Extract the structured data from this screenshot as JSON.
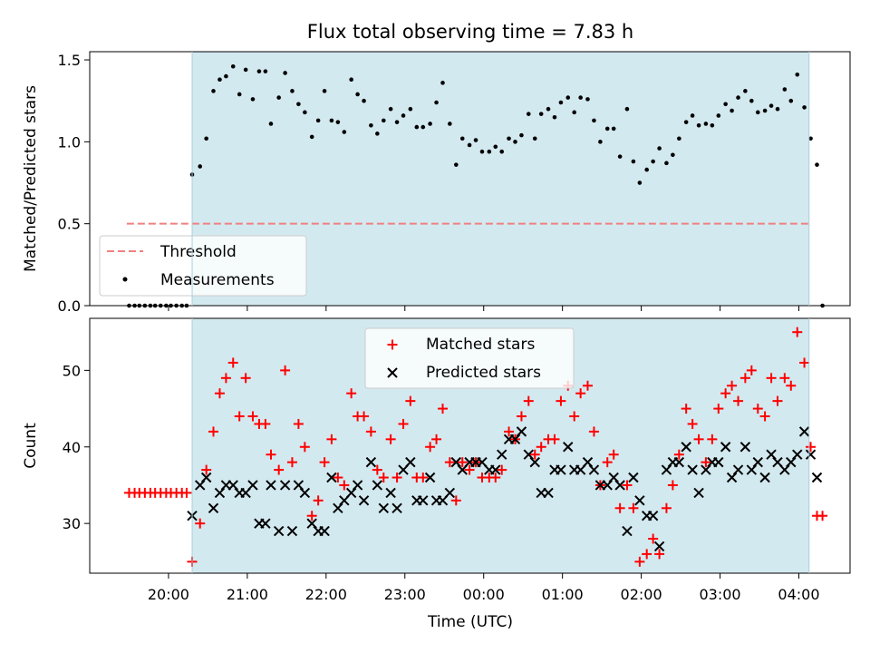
{
  "title": "Flux total observing time = 7.83 h",
  "xlabel": "Time (UTC)",
  "x_ticks": [
    "20:00",
    "21:00",
    "22:00",
    "23:00",
    "00:00",
    "01:00",
    "02:00",
    "03:00",
    "04:00"
  ],
  "colors": {
    "shade": "#d3e9f0",
    "threshold": "#f08080",
    "measurement": "#000000",
    "matched": "#ff0000",
    "predicted": "#000000"
  },
  "chart_data": [
    {
      "type": "scatter",
      "ylabel": "Matched/Predicted stars",
      "xlim_hours": [
        19.0,
        28.65
      ],
      "ylim": [
        0,
        1.55
      ],
      "y_ticks": [
        "0.0",
        "0.5",
        "1.0",
        "1.5"
      ],
      "legend": {
        "position": "lower-left",
        "threshold_label": "Threshold",
        "measurement_label": "Measurements"
      },
      "observing_window_hours": [
        20.3,
        28.13
      ],
      "threshold": {
        "value": 0.5,
        "x_range_hours": [
          19.47,
          28.15
        ]
      },
      "measurements": [
        [
          19.5,
          0.0
        ],
        [
          19.57,
          0.0
        ],
        [
          19.63,
          0.0
        ],
        [
          19.7,
          0.0
        ],
        [
          19.77,
          0.0
        ],
        [
          19.83,
          0.0
        ],
        [
          19.9,
          0.0
        ],
        [
          19.97,
          0.0
        ],
        [
          20.03,
          0.0
        ],
        [
          20.1,
          0.0
        ],
        [
          20.17,
          0.0
        ],
        [
          20.23,
          0.0
        ],
        [
          20.3,
          0.8
        ],
        [
          20.4,
          0.85
        ],
        [
          20.48,
          1.02
        ],
        [
          20.57,
          1.31
        ],
        [
          20.65,
          1.38
        ],
        [
          20.73,
          1.4
        ],
        [
          20.82,
          1.46
        ],
        [
          20.9,
          1.29
        ],
        [
          20.98,
          1.44
        ],
        [
          21.07,
          1.26
        ],
        [
          21.15,
          1.43
        ],
        [
          21.23,
          1.43
        ],
        [
          21.3,
          1.11
        ],
        [
          21.4,
          1.27
        ],
        [
          21.48,
          1.42
        ],
        [
          21.57,
          1.31
        ],
        [
          21.65,
          1.23
        ],
        [
          21.73,
          1.18
        ],
        [
          21.82,
          1.03
        ],
        [
          21.9,
          1.13
        ],
        [
          21.98,
          1.31
        ],
        [
          22.07,
          1.13
        ],
        [
          22.15,
          1.12
        ],
        [
          22.23,
          1.06
        ],
        [
          22.32,
          1.38
        ],
        [
          22.4,
          1.29
        ],
        [
          22.48,
          1.25
        ],
        [
          22.57,
          1.1
        ],
        [
          22.65,
          1.05
        ],
        [
          22.73,
          1.13
        ],
        [
          22.82,
          1.2
        ],
        [
          22.9,
          1.12
        ],
        [
          22.98,
          1.16
        ],
        [
          23.07,
          1.2
        ],
        [
          23.15,
          1.09
        ],
        [
          23.23,
          1.09
        ],
        [
          23.32,
          1.11
        ],
        [
          23.4,
          1.24
        ],
        [
          23.48,
          1.36
        ],
        [
          23.57,
          1.11
        ],
        [
          23.65,
          0.86
        ],
        [
          23.73,
          1.02
        ],
        [
          23.82,
          0.98
        ],
        [
          23.9,
          1.01
        ],
        [
          23.98,
          0.94
        ],
        [
          24.07,
          0.94
        ],
        [
          24.15,
          0.97
        ],
        [
          24.23,
          0.94
        ],
        [
          24.32,
          1.02
        ],
        [
          24.4,
          1.0
        ],
        [
          24.48,
          1.04
        ],
        [
          24.57,
          1.17
        ],
        [
          24.65,
          1.02
        ],
        [
          24.73,
          1.17
        ],
        [
          24.82,
          1.2
        ],
        [
          24.9,
          1.15
        ],
        [
          24.98,
          1.24
        ],
        [
          25.07,
          1.27
        ],
        [
          25.15,
          1.18
        ],
        [
          25.23,
          1.27
        ],
        [
          25.32,
          1.26
        ],
        [
          25.4,
          1.13
        ],
        [
          25.48,
          1.0
        ],
        [
          25.57,
          1.08
        ],
        [
          25.65,
          1.08
        ],
        [
          25.73,
          0.91
        ],
        [
          25.82,
          1.2
        ],
        [
          25.9,
          0.88
        ],
        [
          25.98,
          0.75
        ],
        [
          26.07,
          0.83
        ],
        [
          26.15,
          0.88
        ],
        [
          26.23,
          0.96
        ],
        [
          26.32,
          0.87
        ],
        [
          26.4,
          0.92
        ],
        [
          26.48,
          1.02
        ],
        [
          26.57,
          1.12
        ],
        [
          26.65,
          1.16
        ],
        [
          26.73,
          1.1
        ],
        [
          26.82,
          1.11
        ],
        [
          26.9,
          1.1
        ],
        [
          26.98,
          1.16
        ],
        [
          27.07,
          1.23
        ],
        [
          27.15,
          1.19
        ],
        [
          27.23,
          1.27
        ],
        [
          27.32,
          1.31
        ],
        [
          27.4,
          1.25
        ],
        [
          27.48,
          1.18
        ],
        [
          27.57,
          1.19
        ],
        [
          27.65,
          1.22
        ],
        [
          27.73,
          1.2
        ],
        [
          27.82,
          1.32
        ],
        [
          27.9,
          1.25
        ],
        [
          27.98,
          1.41
        ],
        [
          28.07,
          1.21
        ],
        [
          28.15,
          1.02
        ],
        [
          28.23,
          0.86
        ],
        [
          28.3,
          0.0
        ]
      ]
    },
    {
      "type": "scatter",
      "ylabel": "Count",
      "xlim_hours": [
        19.0,
        28.65
      ],
      "ylim": [
        23.5,
        56.8
      ],
      "y_ticks": [
        "30",
        "40",
        "50"
      ],
      "legend": {
        "position": "top-center",
        "matched_label": "Matched stars",
        "predicted_label": "Predicted stars"
      },
      "observing_window_hours": [
        20.3,
        28.13
      ],
      "matched": [
        [
          19.5,
          34
        ],
        [
          19.57,
          34
        ],
        [
          19.63,
          34
        ],
        [
          19.7,
          34
        ],
        [
          19.77,
          34
        ],
        [
          19.83,
          34
        ],
        [
          19.9,
          34
        ],
        [
          19.97,
          34
        ],
        [
          20.03,
          34
        ],
        [
          20.1,
          34
        ],
        [
          20.17,
          34
        ],
        [
          20.23,
          34
        ],
        [
          20.3,
          25
        ],
        [
          20.4,
          30
        ],
        [
          20.48,
          37
        ],
        [
          20.57,
          42
        ],
        [
          20.65,
          47
        ],
        [
          20.73,
          49
        ],
        [
          20.82,
          51
        ],
        [
          20.9,
          44
        ],
        [
          20.98,
          49
        ],
        [
          21.07,
          44
        ],
        [
          21.15,
          43
        ],
        [
          21.23,
          43
        ],
        [
          21.3,
          39
        ],
        [
          21.4,
          37
        ],
        [
          21.48,
          50
        ],
        [
          21.57,
          38
        ],
        [
          21.65,
          43
        ],
        [
          21.73,
          40
        ],
        [
          21.82,
          31
        ],
        [
          21.9,
          33
        ],
        [
          21.98,
          38
        ],
        [
          22.07,
          41
        ],
        [
          22.15,
          36
        ],
        [
          22.23,
          35
        ],
        [
          22.32,
          47
        ],
        [
          22.4,
          44
        ],
        [
          22.48,
          44
        ],
        [
          22.57,
          42
        ],
        [
          22.65,
          37
        ],
        [
          22.73,
          36
        ],
        [
          22.82,
          41
        ],
        [
          22.9,
          36
        ],
        [
          22.98,
          43
        ],
        [
          23.07,
          46
        ],
        [
          23.15,
          36
        ],
        [
          23.23,
          36
        ],
        [
          23.32,
          40
        ],
        [
          23.4,
          41
        ],
        [
          23.48,
          45
        ],
        [
          23.57,
          38
        ],
        [
          23.65,
          33
        ],
        [
          23.73,
          38
        ],
        [
          23.82,
          37
        ],
        [
          23.9,
          38
        ],
        [
          23.98,
          36
        ],
        [
          24.07,
          36
        ],
        [
          24.15,
          36
        ],
        [
          24.23,
          37
        ],
        [
          24.32,
          42
        ],
        [
          24.4,
          41
        ],
        [
          24.48,
          44
        ],
        [
          24.57,
          46
        ],
        [
          24.65,
          39
        ],
        [
          24.73,
          40
        ],
        [
          24.82,
          41
        ],
        [
          24.9,
          41
        ],
        [
          24.98,
          46
        ],
        [
          25.07,
          48
        ],
        [
          25.15,
          44
        ],
        [
          25.23,
          47
        ],
        [
          25.32,
          48
        ],
        [
          25.4,
          42
        ],
        [
          25.48,
          35
        ],
        [
          25.57,
          38
        ],
        [
          25.65,
          39
        ],
        [
          25.73,
          32
        ],
        [
          25.82,
          35
        ],
        [
          25.9,
          32
        ],
        [
          25.98,
          25
        ],
        [
          26.07,
          26
        ],
        [
          26.15,
          28
        ],
        [
          26.23,
          26
        ],
        [
          26.32,
          32
        ],
        [
          26.4,
          35
        ],
        [
          26.48,
          39
        ],
        [
          26.57,
          45
        ],
        [
          26.65,
          43
        ],
        [
          26.73,
          41
        ],
        [
          26.82,
          38
        ],
        [
          26.9,
          41
        ],
        [
          26.98,
          45
        ],
        [
          27.07,
          47
        ],
        [
          27.15,
          48
        ],
        [
          27.23,
          46
        ],
        [
          27.32,
          49
        ],
        [
          27.4,
          50
        ],
        [
          27.48,
          45
        ],
        [
          27.57,
          44
        ],
        [
          27.65,
          49
        ],
        [
          27.73,
          46
        ],
        [
          27.82,
          49
        ],
        [
          27.9,
          48
        ],
        [
          27.98,
          55
        ],
        [
          28.07,
          51
        ],
        [
          28.15,
          40
        ],
        [
          28.23,
          31
        ],
        [
          28.3,
          31
        ]
      ],
      "predicted": [
        [
          20.3,
          31
        ],
        [
          20.4,
          35
        ],
        [
          20.48,
          36
        ],
        [
          20.57,
          32
        ],
        [
          20.65,
          34
        ],
        [
          20.73,
          35
        ],
        [
          20.82,
          35
        ],
        [
          20.9,
          34
        ],
        [
          20.98,
          34
        ],
        [
          21.07,
          35
        ],
        [
          21.15,
          30
        ],
        [
          21.23,
          30
        ],
        [
          21.3,
          35
        ],
        [
          21.4,
          29
        ],
        [
          21.48,
          35
        ],
        [
          21.57,
          29
        ],
        [
          21.65,
          35
        ],
        [
          21.73,
          34
        ],
        [
          21.82,
          30
        ],
        [
          21.9,
          29
        ],
        [
          21.98,
          29
        ],
        [
          22.07,
          36
        ],
        [
          22.15,
          32
        ],
        [
          22.23,
          33
        ],
        [
          22.32,
          34
        ],
        [
          22.4,
          35
        ],
        [
          22.48,
          33
        ],
        [
          22.57,
          38
        ],
        [
          22.65,
          35
        ],
        [
          22.73,
          32
        ],
        [
          22.82,
          34
        ],
        [
          22.9,
          32
        ],
        [
          22.98,
          37
        ],
        [
          23.07,
          38
        ],
        [
          23.15,
          33
        ],
        [
          23.23,
          33
        ],
        [
          23.32,
          36
        ],
        [
          23.4,
          33
        ],
        [
          23.48,
          33
        ],
        [
          23.57,
          34
        ],
        [
          23.65,
          38
        ],
        [
          23.73,
          37
        ],
        [
          23.82,
          38
        ],
        [
          23.9,
          38
        ],
        [
          23.98,
          38
        ],
        [
          24.07,
          37
        ],
        [
          24.15,
          37
        ],
        [
          24.23,
          39
        ],
        [
          24.32,
          41
        ],
        [
          24.4,
          41
        ],
        [
          24.48,
          42
        ],
        [
          24.57,
          39
        ],
        [
          24.65,
          38
        ],
        [
          24.73,
          34
        ],
        [
          24.82,
          34
        ],
        [
          24.9,
          37
        ],
        [
          24.98,
          37
        ],
        [
          25.07,
          40
        ],
        [
          25.15,
          37
        ],
        [
          25.23,
          37
        ],
        [
          25.32,
          38
        ],
        [
          25.4,
          37
        ],
        [
          25.48,
          35
        ],
        [
          25.57,
          35
        ],
        [
          25.65,
          36
        ],
        [
          25.73,
          35
        ],
        [
          25.82,
          29
        ],
        [
          25.9,
          36
        ],
        [
          25.98,
          33
        ],
        [
          26.07,
          31
        ],
        [
          26.15,
          31
        ],
        [
          26.23,
          27
        ],
        [
          26.32,
          37
        ],
        [
          26.4,
          38
        ],
        [
          26.48,
          38
        ],
        [
          26.57,
          40
        ],
        [
          26.65,
          37
        ],
        [
          26.73,
          34
        ],
        [
          26.82,
          37
        ],
        [
          26.9,
          38
        ],
        [
          26.98,
          38
        ],
        [
          27.07,
          40
        ],
        [
          27.15,
          36
        ],
        [
          27.23,
          37
        ],
        [
          27.32,
          40
        ],
        [
          27.4,
          37
        ],
        [
          27.48,
          38
        ],
        [
          27.57,
          36
        ],
        [
          27.65,
          39
        ],
        [
          27.73,
          38
        ],
        [
          27.82,
          37
        ],
        [
          27.9,
          38
        ],
        [
          27.98,
          39
        ],
        [
          28.07,
          42
        ],
        [
          28.15,
          39
        ],
        [
          28.23,
          36
        ]
      ]
    }
  ]
}
